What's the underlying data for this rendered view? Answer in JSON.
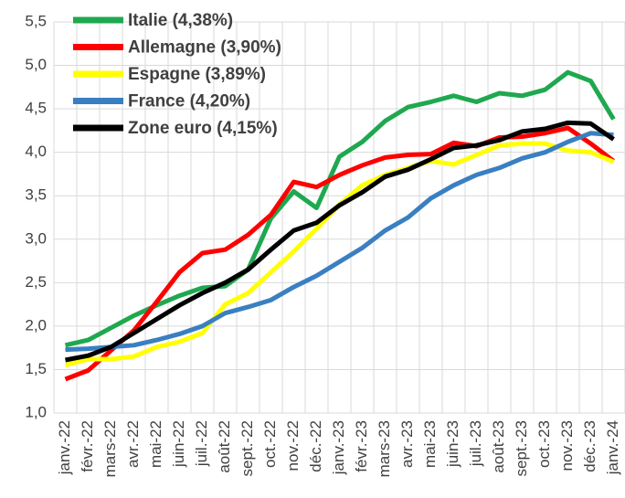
{
  "chart_data": {
    "type": "line",
    "categories": [
      "janv.-22",
      "févr.-22",
      "mars-22",
      "avr.-22",
      "mai-22",
      "juin-22",
      "juil.-22",
      "août-22",
      "sept.-22",
      "oct.-22",
      "nov.-22",
      "déc.-22",
      "janv.-23",
      "févr.-23",
      "mars-23",
      "avr.-23",
      "mai-23",
      "juin-23",
      "juil.-23",
      "août-23",
      "sept.-23",
      "oct.-23",
      "nov.-23",
      "déc.-23",
      "janv.-24"
    ],
    "series": [
      {
        "name": "Italie (4,38%)",
        "color": "#1fa84f",
        "values": [
          1.78,
          1.84,
          1.98,
          2.12,
          2.24,
          2.35,
          2.44,
          2.46,
          2.65,
          3.24,
          3.55,
          3.36,
          3.95,
          4.12,
          4.36,
          4.52,
          4.58,
          4.65,
          4.58,
          4.68,
          4.65,
          4.72,
          4.92,
          4.82,
          4.38
        ]
      },
      {
        "name": "Allemagne (3,90%)",
        "color": "#ff0000",
        "values": [
          1.39,
          1.49,
          1.72,
          1.95,
          2.28,
          2.62,
          2.84,
          2.88,
          3.05,
          3.28,
          3.66,
          3.6,
          3.74,
          3.85,
          3.94,
          3.97,
          3.98,
          4.11,
          4.07,
          4.17,
          4.18,
          4.22,
          4.28,
          4.1,
          3.9
        ]
      },
      {
        "name": "Espagne (3,89%)",
        "color": "#ffff00",
        "values": [
          1.55,
          1.62,
          1.62,
          1.65,
          1.76,
          1.82,
          1.92,
          2.25,
          2.38,
          2.62,
          2.86,
          3.12,
          3.4,
          3.62,
          3.74,
          3.82,
          3.9,
          3.86,
          3.97,
          4.08,
          4.1,
          4.1,
          4.02,
          4.0,
          3.89
        ]
      },
      {
        "name": "France (4,20%)",
        "color": "#3a7fc1",
        "values": [
          1.73,
          1.74,
          1.76,
          1.78,
          1.84,
          1.91,
          2.0,
          2.15,
          2.22,
          2.3,
          2.45,
          2.58,
          2.74,
          2.9,
          3.1,
          3.25,
          3.47,
          3.62,
          3.74,
          3.82,
          3.93,
          4.0,
          4.12,
          4.22,
          4.2
        ]
      },
      {
        "name": "Zone euro (4,15%)",
        "color": "#000000",
        "values": [
          1.61,
          1.66,
          1.76,
          1.92,
          2.08,
          2.24,
          2.38,
          2.5,
          2.65,
          2.88,
          3.1,
          3.19,
          3.39,
          3.54,
          3.72,
          3.8,
          3.92,
          4.05,
          4.08,
          4.14,
          4.24,
          4.27,
          4.34,
          4.33,
          4.15
        ]
      }
    ],
    "ylim": [
      1.0,
      5.5
    ],
    "yticks": [
      {
        "value": 1.0,
        "label": "1,0"
      },
      {
        "value": 1.5,
        "label": "1,5"
      },
      {
        "value": 2.0,
        "label": "2,0"
      },
      {
        "value": 2.5,
        "label": "2,5"
      },
      {
        "value": 3.0,
        "label": "3,0"
      },
      {
        "value": 3.5,
        "label": "3,5"
      },
      {
        "value": 4.0,
        "label": "4,0"
      },
      {
        "value": 4.5,
        "label": "4,5"
      },
      {
        "value": 5.0,
        "label": "5,0"
      },
      {
        "value": 5.5,
        "label": "5,5"
      }
    ],
    "grid": true,
    "legend": "top-left"
  }
}
